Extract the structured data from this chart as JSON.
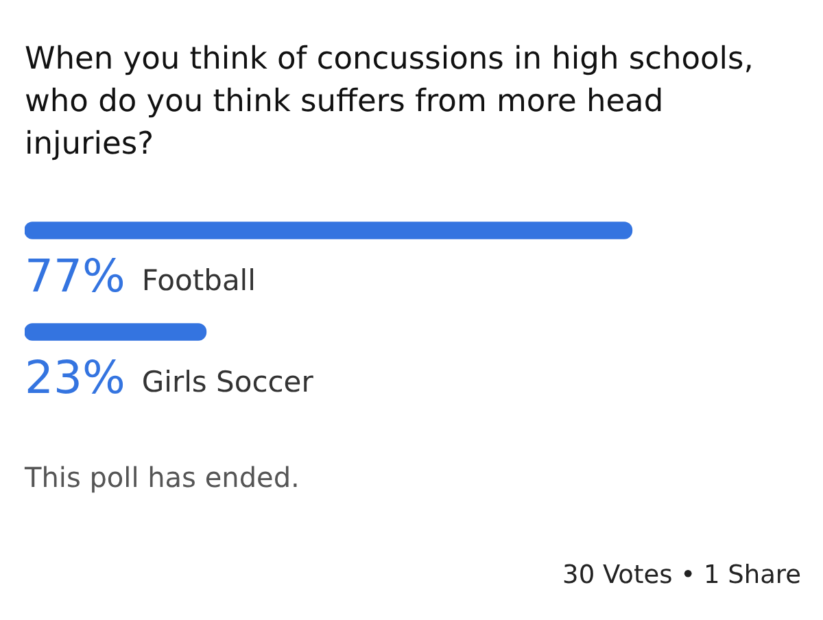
{
  "chart_data": {
    "type": "bar",
    "orientation": "horizontal",
    "title": "When you think of concussions in high schools, who do you think suffers from more head injuries?",
    "categories": [
      "Football",
      "Girls Soccer"
    ],
    "values": [
      77,
      23
    ],
    "value_labels": [
      "77%",
      "23%"
    ],
    "color": "#3474e0",
    "tick_labels": "y",
    "annotations": [
      "This poll has ended.",
      "30 Votes • 1 Share"
    ]
  }
}
